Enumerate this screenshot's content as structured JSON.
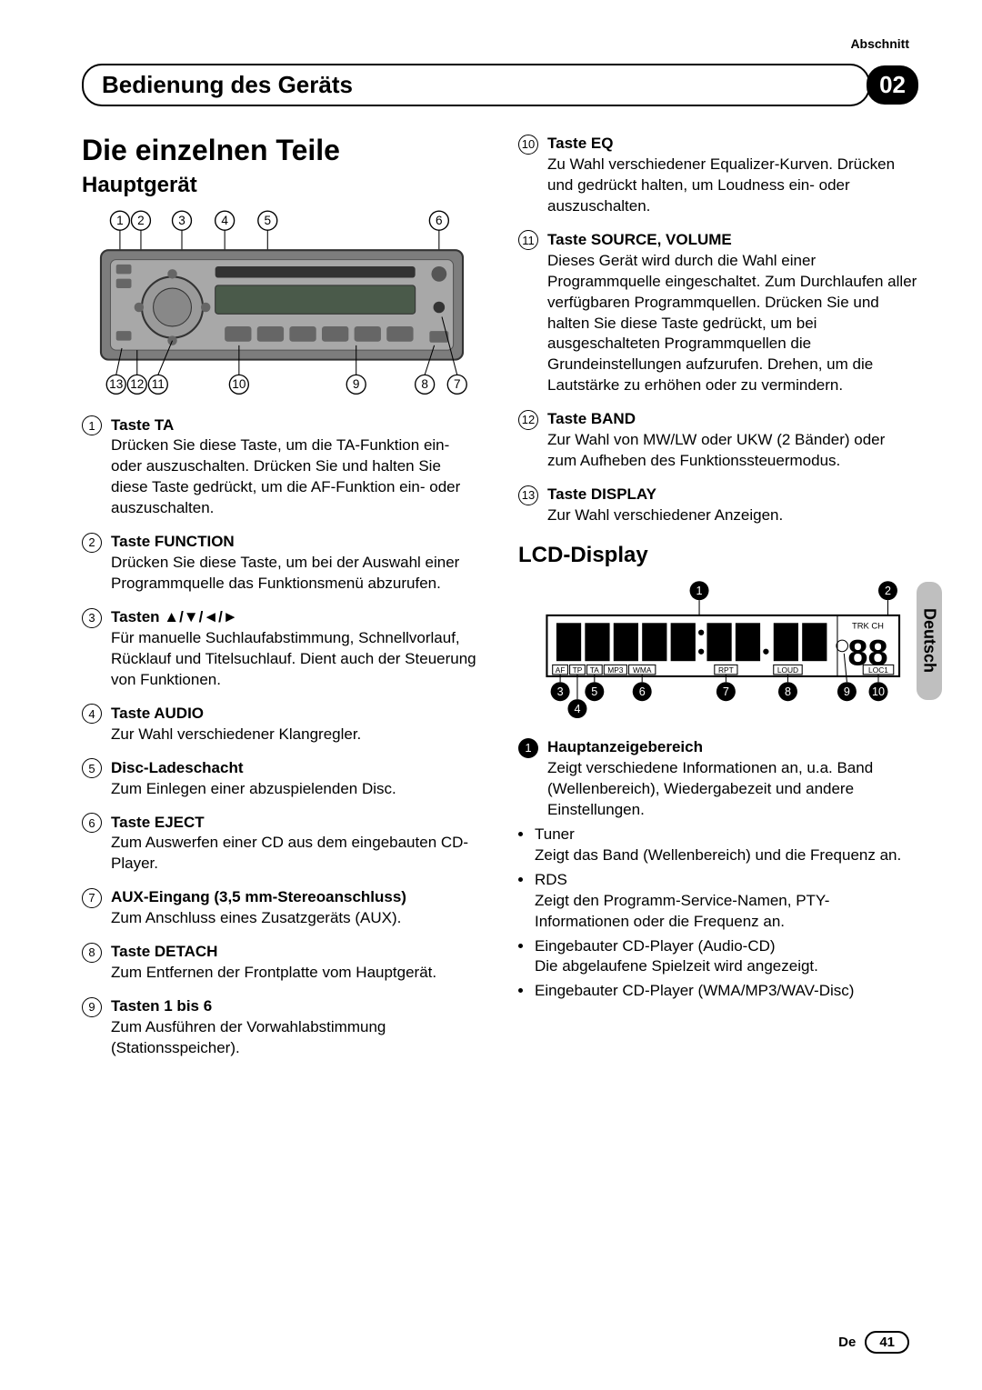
{
  "meta": {
    "abschnitt": "Abschnitt",
    "section_title": "Bedienung des Geräts",
    "section_number": "02",
    "language_tab": "Deutsch",
    "footer_lang": "De",
    "page_number": "41"
  },
  "left": {
    "h1": "Die einzelnen Teile",
    "h2": "Hauptgerät",
    "diagram": {
      "top_nums": [
        "1",
        "2",
        "3",
        "4",
        "5",
        "6"
      ],
      "bottom_nums": [
        "13",
        "12",
        "11",
        "10",
        "9",
        "8",
        "7"
      ]
    },
    "items": [
      {
        "num": "1",
        "title": "Taste TA",
        "body": "Drücken Sie diese Taste, um die TA-Funktion ein- oder auszuschalten. Drücken Sie und halten Sie diese Taste gedrückt, um die AF-Funktion ein- oder auszuschalten."
      },
      {
        "num": "2",
        "title": "Taste FUNCTION",
        "body": "Drücken Sie diese Taste, um bei der Auswahl einer Programmquelle das Funktionsmenü abzurufen."
      },
      {
        "num": "3",
        "title": "Tasten ▲/▼/◄/►",
        "body": "Für manuelle Suchlaufabstimmung, Schnellvorlauf, Rücklauf und Titelsuchlauf. Dient auch der Steuerung von Funktionen."
      },
      {
        "num": "4",
        "title": "Taste AUDIO",
        "body": "Zur Wahl verschiedener Klangregler."
      },
      {
        "num": "5",
        "title": "Disc-Ladeschacht",
        "body": "Zum Einlegen einer abzuspielenden Disc."
      },
      {
        "num": "6",
        "title": "Taste EJECT",
        "body": "Zum Auswerfen einer CD aus dem eingebauten CD-Player."
      },
      {
        "num": "7",
        "title": "AUX-Eingang (3,5 mm-Stereoanschluss)",
        "body": "Zum Anschluss eines Zusatzgeräts (AUX)."
      },
      {
        "num": "8",
        "title": "Taste DETACH",
        "body": "Zum Entfernen der Frontplatte vom Hauptgerät."
      },
      {
        "num": "9",
        "title": "Tasten 1 bis 6",
        "body": "Zum Ausführen der Vorwahlabstimmung (Stationsspeicher)."
      }
    ]
  },
  "right": {
    "items_top": [
      {
        "num": "10",
        "title": "Taste EQ",
        "body": "Zu Wahl verschiedener Equalizer-Kurven. Drücken und gedrückt halten, um Loudness ein- oder auszuschalten."
      },
      {
        "num": "11",
        "title": "Taste SOURCE, VOLUME",
        "body": "Dieses Gerät wird durch die Wahl einer Programmquelle eingeschaltet. Zum Durchlaufen aller verfügbaren Programmquellen. Drücken Sie und halten Sie diese Taste gedrückt, um bei ausgeschalteten Programmquellen die Grundeinstellungen aufzurufen. Drehen, um die Lautstärke zu erhöhen oder zu vermindern."
      },
      {
        "num": "12",
        "title": "Taste BAND",
        "body": "Zur Wahl von MW/LW oder UKW (2 Bänder) oder zum Aufheben des Funktionssteuermodus."
      },
      {
        "num": "13",
        "title": "Taste DISPLAY",
        "body": "Zur Wahl verschiedener Anzeigen."
      }
    ],
    "h2": "LCD-Display",
    "lcd_diagram": {
      "top_nums": [
        "1",
        "2"
      ],
      "bottom_nums": [
        "3",
        "4",
        "5",
        "6",
        "7",
        "8",
        "9",
        "10"
      ],
      "trk": "TRK CH",
      "digits": "88",
      "indicators": [
        "AF",
        "TP",
        "TA",
        "MP3",
        "WMA",
        "RPT",
        "LOUD",
        "LOC1"
      ]
    },
    "items_bottom": [
      {
        "num": "1",
        "title": "Hauptanzeigebereich",
        "body": "Zeigt verschiedene Informationen an, u.a. Band (Wellenbereich), Wiedergabezeit und andere Einstellungen.",
        "sub": [
          {
            "label": "Tuner",
            "text": "Zeigt das Band (Wellenbereich) und die Frequenz an."
          },
          {
            "label": "RDS",
            "text": "Zeigt den Programm-Service-Namen, PTY-Informationen oder die Frequenz an."
          },
          {
            "label": "Eingebauter CD-Player (Audio-CD)",
            "text": "Die abgelaufene Spielzeit wird angezeigt."
          },
          {
            "label": "Eingebauter CD-Player (WMA/MP3/WAV-Disc)",
            "text": ""
          }
        ]
      }
    ]
  }
}
